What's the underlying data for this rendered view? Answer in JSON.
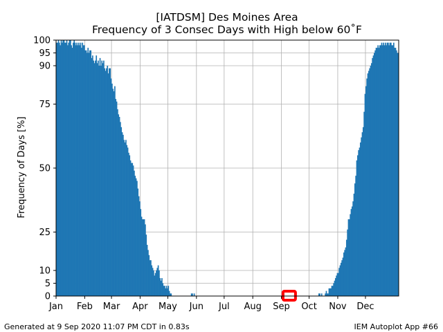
{
  "chart_data": {
    "type": "bar",
    "title": "[IATDSM] Des Moines Area",
    "subtitle": "Frequency of 3 Consec Days with High below 60˚F",
    "xlabel": "",
    "ylabel": "Frequency of Days [%]",
    "ylim": [
      0,
      100
    ],
    "y_ticks": [
      0,
      5,
      10,
      25,
      50,
      75,
      90,
      95,
      100
    ],
    "x_tick_labels": [
      "Jan",
      "Feb",
      "Mar",
      "Apr",
      "May",
      "Jun",
      "Jul",
      "Aug",
      "Sep",
      "Oct",
      "Nov",
      "Dec"
    ],
    "grid": true,
    "bar_color": "#1f77b4",
    "highlight_color": "#ff0000",
    "highlight_day": "Sep 9",
    "highlight_value": 0,
    "days_per_month": [
      31,
      29,
      31,
      30,
      31,
      30,
      31,
      31,
      30,
      31,
      30,
      31
    ],
    "values": [
      99,
      99,
      100,
      99,
      98,
      100,
      99,
      100,
      100,
      99,
      99,
      100,
      98,
      99,
      100,
      100,
      98,
      97,
      99,
      100,
      99,
      98,
      99,
      98,
      99,
      98,
      99,
      97,
      99,
      98,
      98,
      96,
      96,
      95,
      97,
      95,
      96,
      96,
      93,
      94,
      92,
      91,
      92,
      94,
      91,
      92,
      90,
      93,
      90,
      92,
      91,
      92,
      89,
      88,
      89,
      90,
      87,
      89,
      89,
      85,
      83,
      81,
      80,
      82,
      77,
      76,
      73,
      71,
      70,
      68,
      66,
      64,
      63,
      61,
      60,
      61,
      59,
      58,
      56,
      55,
      53,
      52,
      52,
      51,
      49,
      47,
      46,
      45,
      42,
      39,
      37,
      34,
      31,
      30,
      30,
      30,
      28,
      24,
      20,
      18,
      16,
      14,
      14,
      12,
      11,
      10,
      8,
      9,
      10,
      11,
      12,
      10,
      7,
      6,
      7,
      5,
      4,
      4,
      3,
      4,
      3,
      4,
      2,
      1,
      1,
      0,
      0,
      0,
      0,
      0,
      0,
      0,
      0,
      0,
      0,
      0,
      0,
      0,
      0,
      0,
      0,
      0,
      0,
      0,
      0,
      0,
      1,
      1,
      0,
      1,
      0,
      0,
      0,
      0,
      0,
      0,
      0,
      0,
      0,
      0,
      0,
      0,
      0,
      0,
      0,
      0,
      0,
      0,
      0,
      0,
      0,
      0,
      0,
      0,
      0,
      0,
      0,
      0,
      0,
      0,
      0,
      0,
      0,
      0,
      0,
      0,
      0,
      0,
      0,
      0,
      0,
      0,
      0,
      0,
      0,
      0,
      0,
      0,
      0,
      0,
      0,
      0,
      0,
      0,
      0,
      0,
      0,
      0,
      0,
      0,
      0,
      0,
      0,
      0,
      0,
      0,
      0,
      0,
      0,
      0,
      0,
      0,
      0,
      0,
      0,
      0,
      0,
      0,
      0,
      0,
      0,
      0,
      0,
      0,
      0,
      0,
      0,
      0,
      0,
      0,
      0,
      0,
      0,
      0,
      0,
      0,
      0,
      0,
      0,
      0,
      0,
      0,
      0,
      0,
      0,
      0,
      0,
      0,
      0,
      0,
      0,
      0,
      0,
      0,
      0,
      0,
      0,
      0,
      0,
      0,
      0,
      0,
      0,
      0,
      0,
      0,
      0,
      0,
      0,
      0,
      0,
      0,
      0,
      0,
      1,
      1,
      0,
      1,
      0,
      0,
      0,
      1,
      2,
      1,
      1,
      3,
      3,
      3,
      4,
      4,
      5,
      6,
      7,
      8,
      9,
      9,
      11,
      12,
      13,
      14,
      15,
      17,
      18,
      19,
      22,
      26,
      30,
      30,
      32,
      34,
      35,
      37,
      40,
      44,
      47,
      53,
      55,
      57,
      58,
      60,
      62,
      64,
      66,
      72,
      79,
      82,
      85,
      87,
      88,
      89,
      90,
      91,
      93,
      94,
      95,
      96,
      97,
      97,
      98,
      97,
      98,
      98,
      99,
      98,
      99,
      98,
      99,
      98,
      99,
      99,
      98,
      99,
      99,
      98,
      98,
      99,
      97,
      97,
      96,
      95,
      95
    ]
  },
  "footer": {
    "generated": "Generated at 9 Sep 2020 11:07 PM CDT in 0.83s",
    "app": "IEM Autoplot App #66"
  }
}
